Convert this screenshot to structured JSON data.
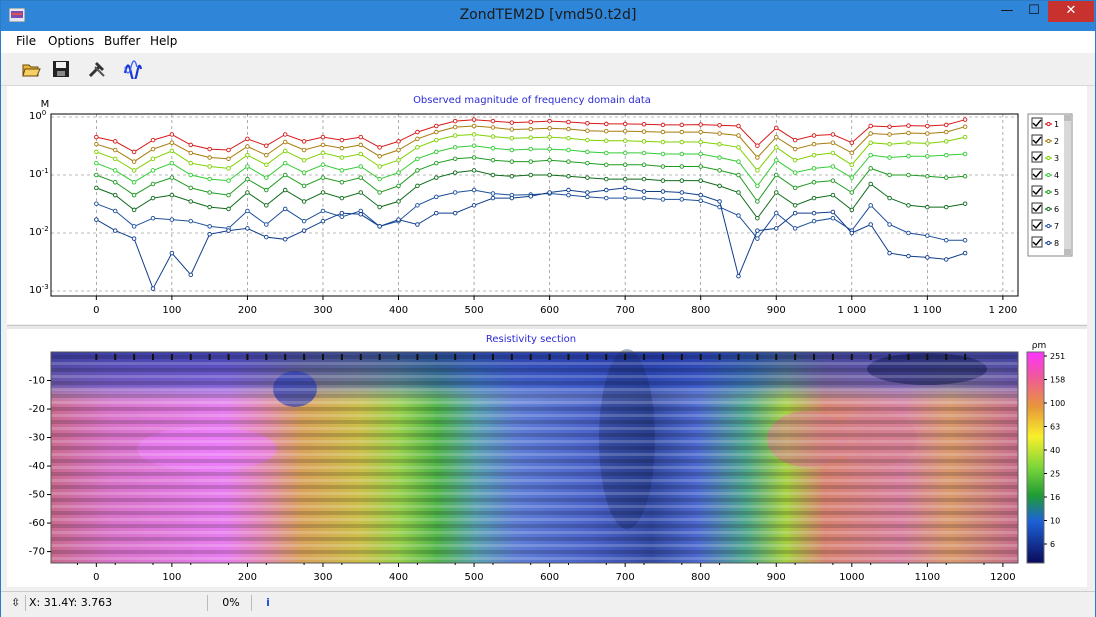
{
  "window": {
    "title": "ZondTEM2D [vmd50.t2d]",
    "controls": {
      "minimize": "—",
      "maximize": "☐",
      "close": "✕"
    }
  },
  "menu": [
    "File",
    "Options",
    "Buffer",
    "Help"
  ],
  "toolbar": [
    {
      "name": "open-icon"
    },
    {
      "name": "save-icon"
    },
    {
      "name": "tools-icon"
    },
    {
      "name": "wave-icon"
    }
  ],
  "top_plot": {
    "title": "Observed magnitude of frequency domain data",
    "y_unit": "M",
    "y_tick_labels": [
      {
        "base": "10",
        "exp": "0"
      },
      {
        "base": "10",
        "exp": "-1"
      },
      {
        "base": "10",
        "exp": "-2"
      },
      {
        "base": "10",
        "exp": "-3"
      }
    ],
    "x_tick_labels": [
      "0",
      "100",
      "200",
      "300",
      "400",
      "500",
      "600",
      "700",
      "800",
      "900",
      "1 000",
      "1 100",
      "1 200"
    ],
    "legend": [
      "1",
      "2",
      "3",
      "4",
      "5",
      "6",
      "7",
      "8"
    ],
    "colors": [
      "#d81818",
      "#a87b0c",
      "#7fd100",
      "#33cc33",
      "#1f9b1f",
      "#0e6b1a",
      "#1c4f9b",
      "#0f3d8c"
    ]
  },
  "bottom_plot": {
    "title": "Resistivity section",
    "y_tick_labels": [
      "-10",
      "-20",
      "-30",
      "-40",
      "-50",
      "-60",
      "-70"
    ],
    "x_tick_labels": [
      "0",
      "100",
      "200",
      "300",
      "400",
      "500",
      "600",
      "700",
      "800",
      "900",
      "1000",
      "1100",
      "1200"
    ],
    "colorbar": {
      "unit": "ρm",
      "labels": [
        "251",
        "158",
        "100",
        "63",
        "40",
        "25",
        "16",
        "10",
        "6"
      ]
    }
  },
  "chart_data": [
    {
      "type": "line",
      "title": "Observed magnitude of frequency domain data",
      "ylabel": "M",
      "y_scale": "log",
      "ylim": [
        0.001,
        1
      ],
      "xlim": [
        -60,
        1220
      ],
      "x": [
        0,
        25,
        50,
        75,
        100,
        125,
        150,
        175,
        200,
        225,
        250,
        275,
        300,
        325,
        350,
        375,
        400,
        425,
        450,
        475,
        500,
        525,
        550,
        575,
        600,
        625,
        650,
        675,
        700,
        725,
        750,
        775,
        800,
        825,
        850,
        875,
        900,
        925,
        950,
        975,
        1000,
        1025,
        1050,
        1075,
        1100,
        1125,
        1150
      ],
      "series": [
        {
          "name": "1",
          "values": [
            0.45,
            0.38,
            0.25,
            0.4,
            0.5,
            0.33,
            0.28,
            0.27,
            0.42,
            0.32,
            0.5,
            0.38,
            0.45,
            0.4,
            0.45,
            0.3,
            0.38,
            0.55,
            0.7,
            0.85,
            0.9,
            0.85,
            0.8,
            0.82,
            0.85,
            0.82,
            0.78,
            0.76,
            0.76,
            0.75,
            0.73,
            0.73,
            0.74,
            0.72,
            0.7,
            0.32,
            0.65,
            0.4,
            0.48,
            0.5,
            0.36,
            0.7,
            0.68,
            0.71,
            0.7,
            0.73,
            0.9
          ]
        },
        {
          "name": "2",
          "values": [
            0.34,
            0.27,
            0.17,
            0.28,
            0.36,
            0.24,
            0.2,
            0.19,
            0.31,
            0.22,
            0.37,
            0.27,
            0.33,
            0.29,
            0.33,
            0.21,
            0.27,
            0.42,
            0.55,
            0.67,
            0.7,
            0.66,
            0.61,
            0.62,
            0.64,
            0.62,
            0.58,
            0.57,
            0.57,
            0.56,
            0.55,
            0.55,
            0.55,
            0.52,
            0.48,
            0.2,
            0.45,
            0.28,
            0.34,
            0.36,
            0.24,
            0.52,
            0.5,
            0.53,
            0.52,
            0.55,
            0.68
          ]
        },
        {
          "name": "3",
          "values": [
            0.25,
            0.19,
            0.12,
            0.19,
            0.26,
            0.16,
            0.14,
            0.13,
            0.22,
            0.15,
            0.26,
            0.18,
            0.24,
            0.2,
            0.23,
            0.14,
            0.18,
            0.3,
            0.4,
            0.48,
            0.5,
            0.46,
            0.43,
            0.44,
            0.45,
            0.43,
            0.4,
            0.39,
            0.39,
            0.38,
            0.37,
            0.37,
            0.37,
            0.34,
            0.3,
            0.12,
            0.3,
            0.18,
            0.22,
            0.24,
            0.15,
            0.36,
            0.34,
            0.36,
            0.35,
            0.38,
            0.45
          ]
        },
        {
          "name": "4",
          "values": [
            0.16,
            0.12,
            0.075,
            0.12,
            0.16,
            0.1,
            0.085,
            0.08,
            0.14,
            0.09,
            0.16,
            0.11,
            0.15,
            0.12,
            0.14,
            0.085,
            0.11,
            0.19,
            0.25,
            0.3,
            0.32,
            0.29,
            0.27,
            0.28,
            0.28,
            0.27,
            0.25,
            0.24,
            0.24,
            0.24,
            0.23,
            0.23,
            0.23,
            0.2,
            0.17,
            0.065,
            0.18,
            0.11,
            0.13,
            0.14,
            0.09,
            0.22,
            0.2,
            0.21,
            0.21,
            0.22,
            0.23
          ]
        },
        {
          "name": "5",
          "values": [
            0.1,
            0.075,
            0.045,
            0.07,
            0.09,
            0.06,
            0.05,
            0.045,
            0.085,
            0.055,
            0.1,
            0.065,
            0.09,
            0.075,
            0.09,
            0.05,
            0.065,
            0.12,
            0.16,
            0.19,
            0.2,
            0.18,
            0.17,
            0.17,
            0.18,
            0.17,
            0.16,
            0.15,
            0.15,
            0.15,
            0.14,
            0.14,
            0.14,
            0.12,
            0.1,
            0.035,
            0.1,
            0.06,
            0.075,
            0.08,
            0.05,
            0.13,
            0.1,
            0.1,
            0.095,
            0.09,
            0.095
          ]
        },
        {
          "name": "6",
          "values": [
            0.06,
            0.045,
            0.025,
            0.04,
            0.045,
            0.035,
            0.028,
            0.026,
            0.05,
            0.03,
            0.055,
            0.035,
            0.05,
            0.04,
            0.05,
            0.028,
            0.035,
            0.065,
            0.09,
            0.11,
            0.12,
            0.1,
            0.095,
            0.1,
            0.1,
            0.095,
            0.09,
            0.085,
            0.085,
            0.085,
            0.08,
            0.08,
            0.08,
            0.065,
            0.05,
            0.018,
            0.05,
            0.03,
            0.04,
            0.045,
            0.025,
            0.07,
            0.04,
            0.03,
            0.028,
            0.028,
            0.032
          ]
        },
        {
          "name": "7",
          "values": [
            0.032,
            0.024,
            0.013,
            0.018,
            0.017,
            0.016,
            0.013,
            0.012,
            0.024,
            0.014,
            0.026,
            0.016,
            0.024,
            0.019,
            0.024,
            0.013,
            0.016,
            0.03,
            0.042,
            0.05,
            0.055,
            0.048,
            0.045,
            0.046,
            0.048,
            0.045,
            0.042,
            0.04,
            0.04,
            0.04,
            0.038,
            0.038,
            0.036,
            0.028,
            0.02,
            0.008,
            0.022,
            0.012,
            0.016,
            0.018,
            0.011,
            0.03,
            0.014,
            0.01,
            0.009,
            0.0075,
            0.0075
          ]
        },
        {
          "name": "8",
          "values": [
            0.017,
            0.011,
            0.008,
            0.0011,
            0.0045,
            0.0019,
            0.0095,
            0.011,
            0.012,
            0.0085,
            0.0078,
            0.011,
            0.016,
            0.022,
            0.021,
            0.013,
            0.017,
            0.014,
            0.022,
            0.022,
            0.03,
            0.04,
            0.04,
            0.043,
            0.05,
            0.055,
            0.05,
            0.055,
            0.06,
            0.052,
            0.052,
            0.05,
            0.045,
            0.035,
            0.0018,
            0.011,
            0.012,
            0.022,
            0.022,
            0.023,
            0.01,
            0.014,
            0.0045,
            0.004,
            0.0038,
            0.0035,
            0.0045
          ]
        }
      ]
    },
    {
      "type": "heatmap",
      "title": "Resistivity section",
      "xlim": [
        -60,
        1220
      ],
      "ylim": [
        -74,
        0
      ],
      "colorbar_unit": "ρm",
      "colorbar_labels": [
        "251",
        "158",
        "100",
        "63",
        "40",
        "25",
        "16",
        "10",
        "6"
      ]
    }
  ],
  "status": {
    "coords": "X: 31.4Y: 3.763",
    "progress": "0%",
    "info_icon": "info-icon"
  }
}
